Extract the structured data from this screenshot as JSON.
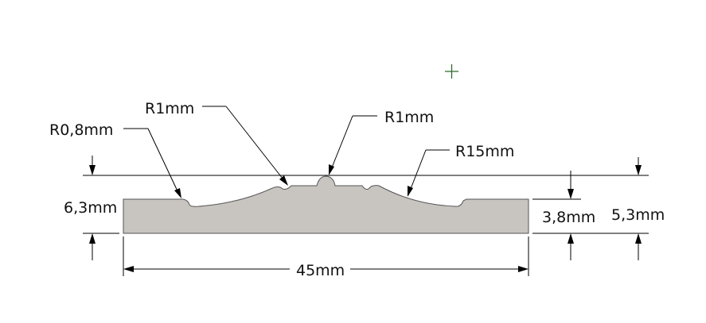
{
  "labels": {
    "r_small_left": "R0,8mm",
    "r_left": "R1mm",
    "r_center": "R1mm",
    "r_large": "R15mm",
    "height_total_left": "6,3mm",
    "height_base": "3,8mm",
    "height_right": "5,3mm",
    "width": "45mm"
  },
  "colors": {
    "profile_fill": "#c8c4c0",
    "profile_stroke": "#555555",
    "cursor": "#2e6b2e"
  },
  "icons": {
    "cursor": "crosshair-icon"
  }
}
